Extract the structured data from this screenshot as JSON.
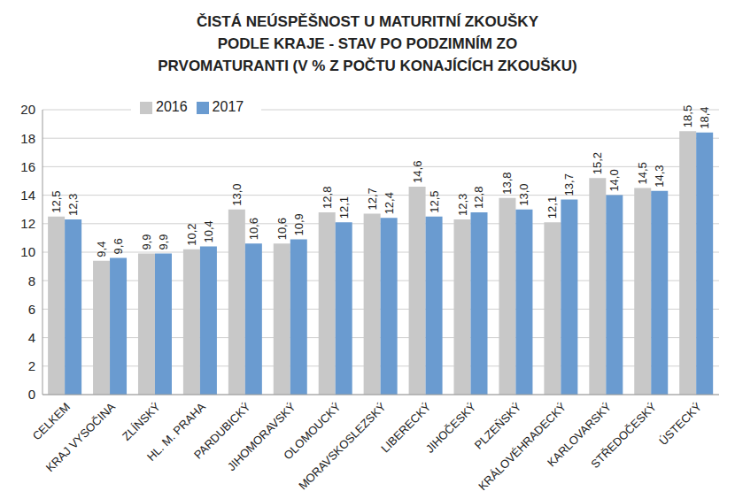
{
  "chart_data": {
    "type": "bar",
    "title": "ČISTÁ NEÚSPĚŠNOST U MATURITNÍ ZKOUŠKY\nPODLE KRAJE - STAV PO PODZIMNÍM ZO\nPRVOMATURANTI (V % Z POČTU KONAJÍCÍCH ZKOUŠKU)",
    "categories": [
      "CELKEM",
      "KRAJ VYSOČINA",
      "ZLÍNSKÝ",
      "HL. M. PRAHA",
      "PARDUBICKÝ",
      "JIHOMORAVSKÝ",
      "OLOMOUCKÝ",
      "MORAVSKOSLEZSKÝ",
      "LIBERECKÝ",
      "JIHOČESKÝ",
      "PLZEŇSKÝ",
      "KRÁLOVÉHRADECKÝ",
      "KARLOVARSKÝ",
      "STŘEDOČESKÝ",
      "ÚSTECKÝ"
    ],
    "series": [
      {
        "name": "2016",
        "color": "#c8c8c8",
        "values": [
          12.5,
          9.4,
          9.9,
          10.2,
          13.0,
          10.6,
          12.8,
          12.7,
          14.6,
          12.3,
          13.8,
          12.1,
          15.2,
          14.5,
          18.5
        ],
        "value_labels": [
          "12,5",
          "9,4",
          "9,9",
          "10,2",
          "13,0",
          "10,6",
          "12,8",
          "12,7",
          "14,6",
          "12,3",
          "13,8",
          "12,1",
          "15,2",
          "14,5",
          "18,5"
        ]
      },
      {
        "name": "2017",
        "color": "#6a9bd0",
        "values": [
          12.3,
          9.6,
          9.9,
          10.4,
          10.6,
          10.9,
          12.1,
          12.4,
          12.5,
          12.8,
          13.0,
          13.7,
          14.0,
          14.3,
          18.4
        ],
        "value_labels": [
          "12,3",
          "9,6",
          "9,9",
          "10,4",
          "10,6",
          "10,9",
          "12,1",
          "12,4",
          "12,5",
          "12,8",
          "13,0",
          "13,7",
          "14,0",
          "14,3",
          "18,4"
        ]
      }
    ],
    "ylim": [
      0,
      20
    ],
    "yticks": [
      0,
      2,
      4,
      6,
      8,
      10,
      12,
      14,
      16,
      18,
      20
    ],
    "grid": true,
    "legend": "top-left",
    "data_labels": true
  }
}
